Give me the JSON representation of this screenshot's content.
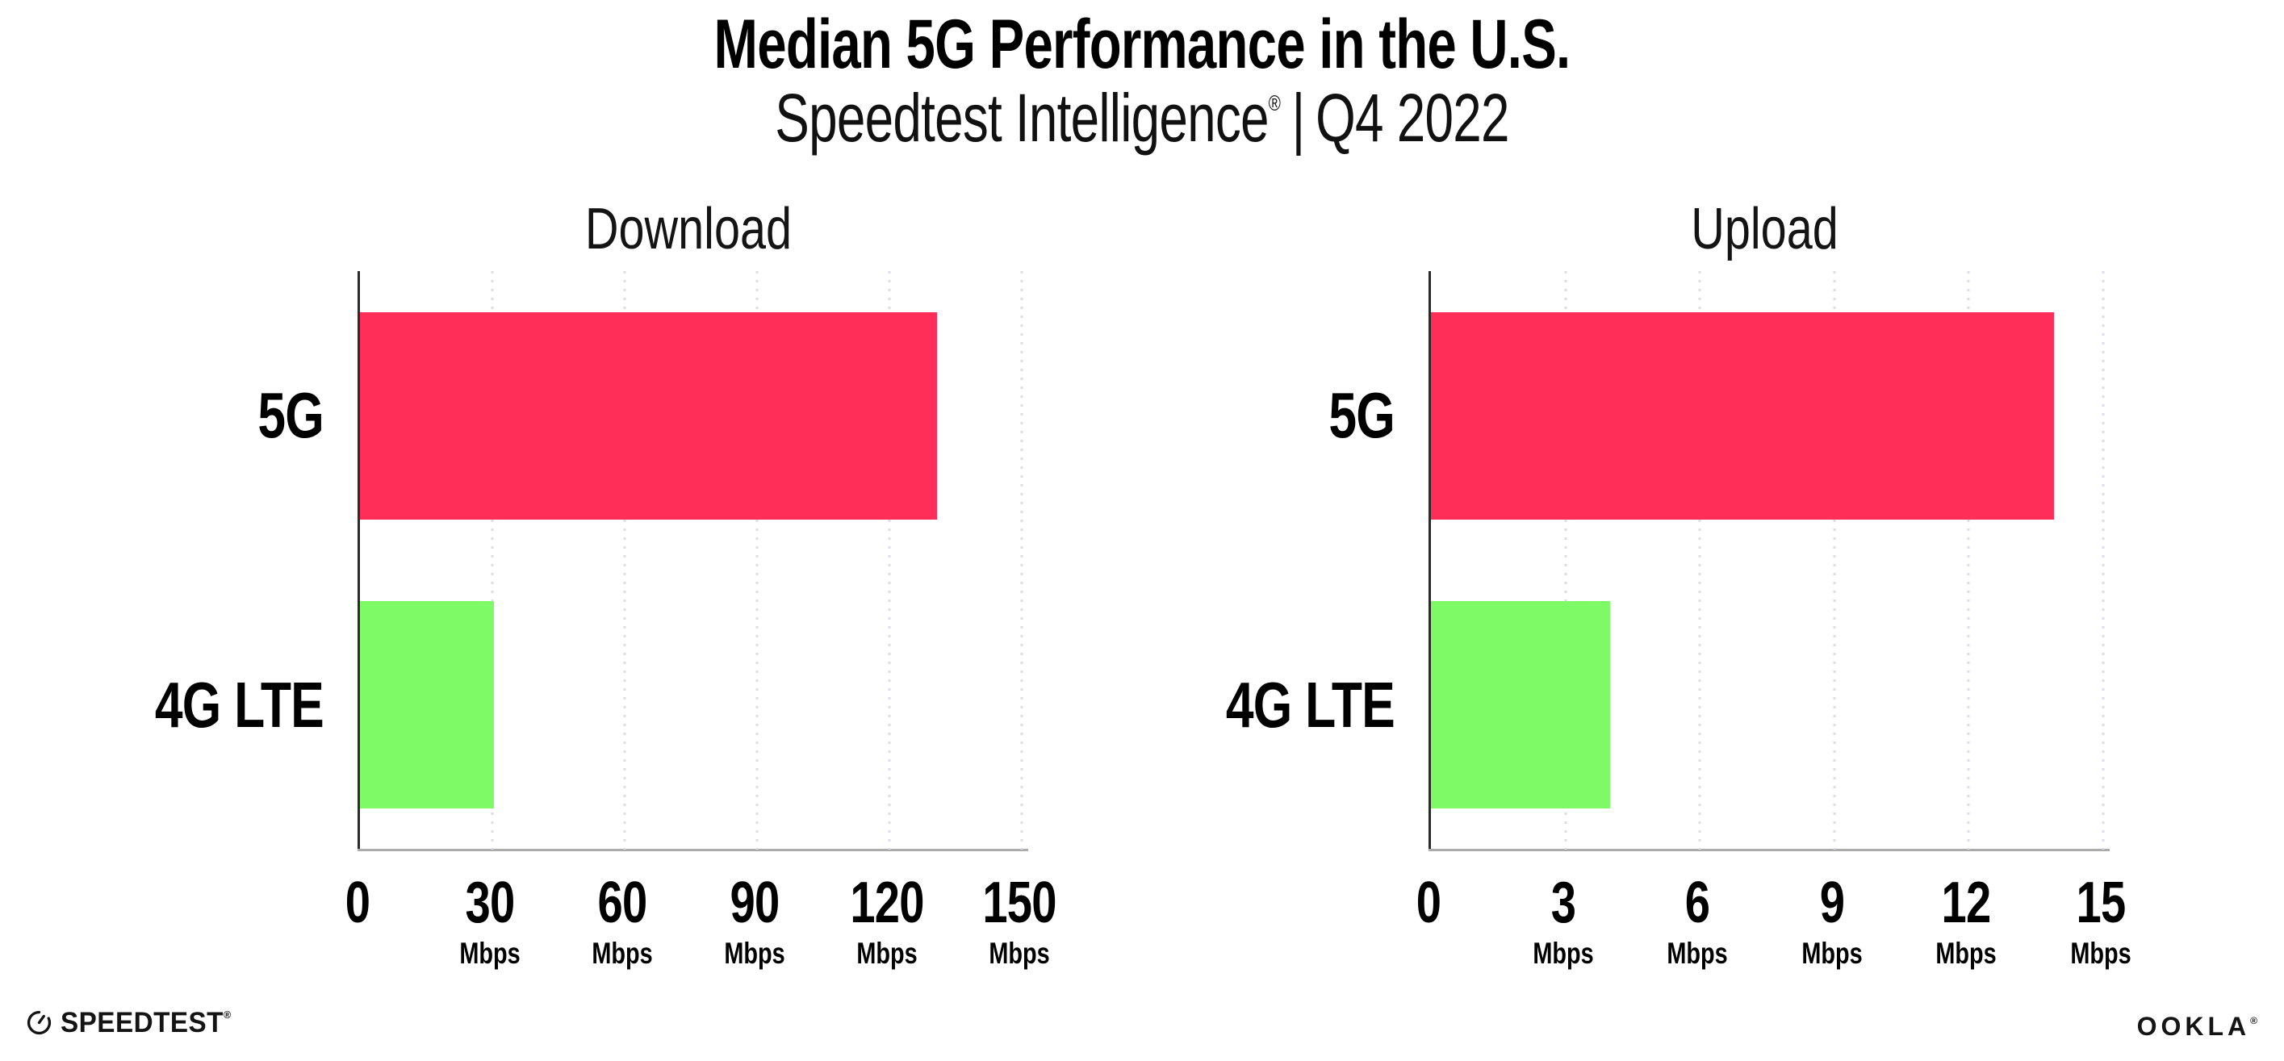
{
  "header": {
    "title": "Median 5G Performance in the U.S.",
    "subtitle_brand": "Speedtest Intelligence",
    "subtitle_registered": "®",
    "subtitle_separator": "|",
    "subtitle_period": "Q4 2022"
  },
  "chart_data": [
    {
      "type": "bar",
      "orientation": "horizontal",
      "title": "Download",
      "categories": [
        "5G",
        "4G LTE"
      ],
      "values": [
        130.8,
        30.3
      ],
      "unit": "Mbps",
      "xlim": [
        0,
        150
      ],
      "xticks": [
        0,
        30,
        60,
        90,
        120,
        150
      ],
      "tick_unit_label": "Mbps",
      "bar_colors": [
        "#ff2e58",
        "#7dfa66"
      ],
      "grid": "dotted-vertical",
      "legend_position": "none"
    },
    {
      "type": "bar",
      "orientation": "horizontal",
      "title": "Upload",
      "categories": [
        "5G",
        "4G LTE"
      ],
      "values": [
        13.9,
        4.0
      ],
      "unit": "Mbps",
      "xlim": [
        0,
        15
      ],
      "xticks": [
        0,
        3,
        6,
        9,
        12,
        15
      ],
      "tick_unit_label": "Mbps",
      "bar_colors": [
        "#ff2e58",
        "#7dfa66"
      ],
      "grid": "dotted-vertical",
      "legend_position": "none"
    }
  ],
  "footer": {
    "speedtest_text": "SPEEDTEST",
    "speedtest_mark": "®",
    "ookla_text": "OOKLA",
    "ookla_mark": "®"
  },
  "colors": {
    "bar_5g": "#ff2e58",
    "bar_4g_lte": "#7dfa66",
    "gridline": "#dcdce8",
    "axis_y": "#2b2b2b",
    "axis_x": "#ababab"
  }
}
